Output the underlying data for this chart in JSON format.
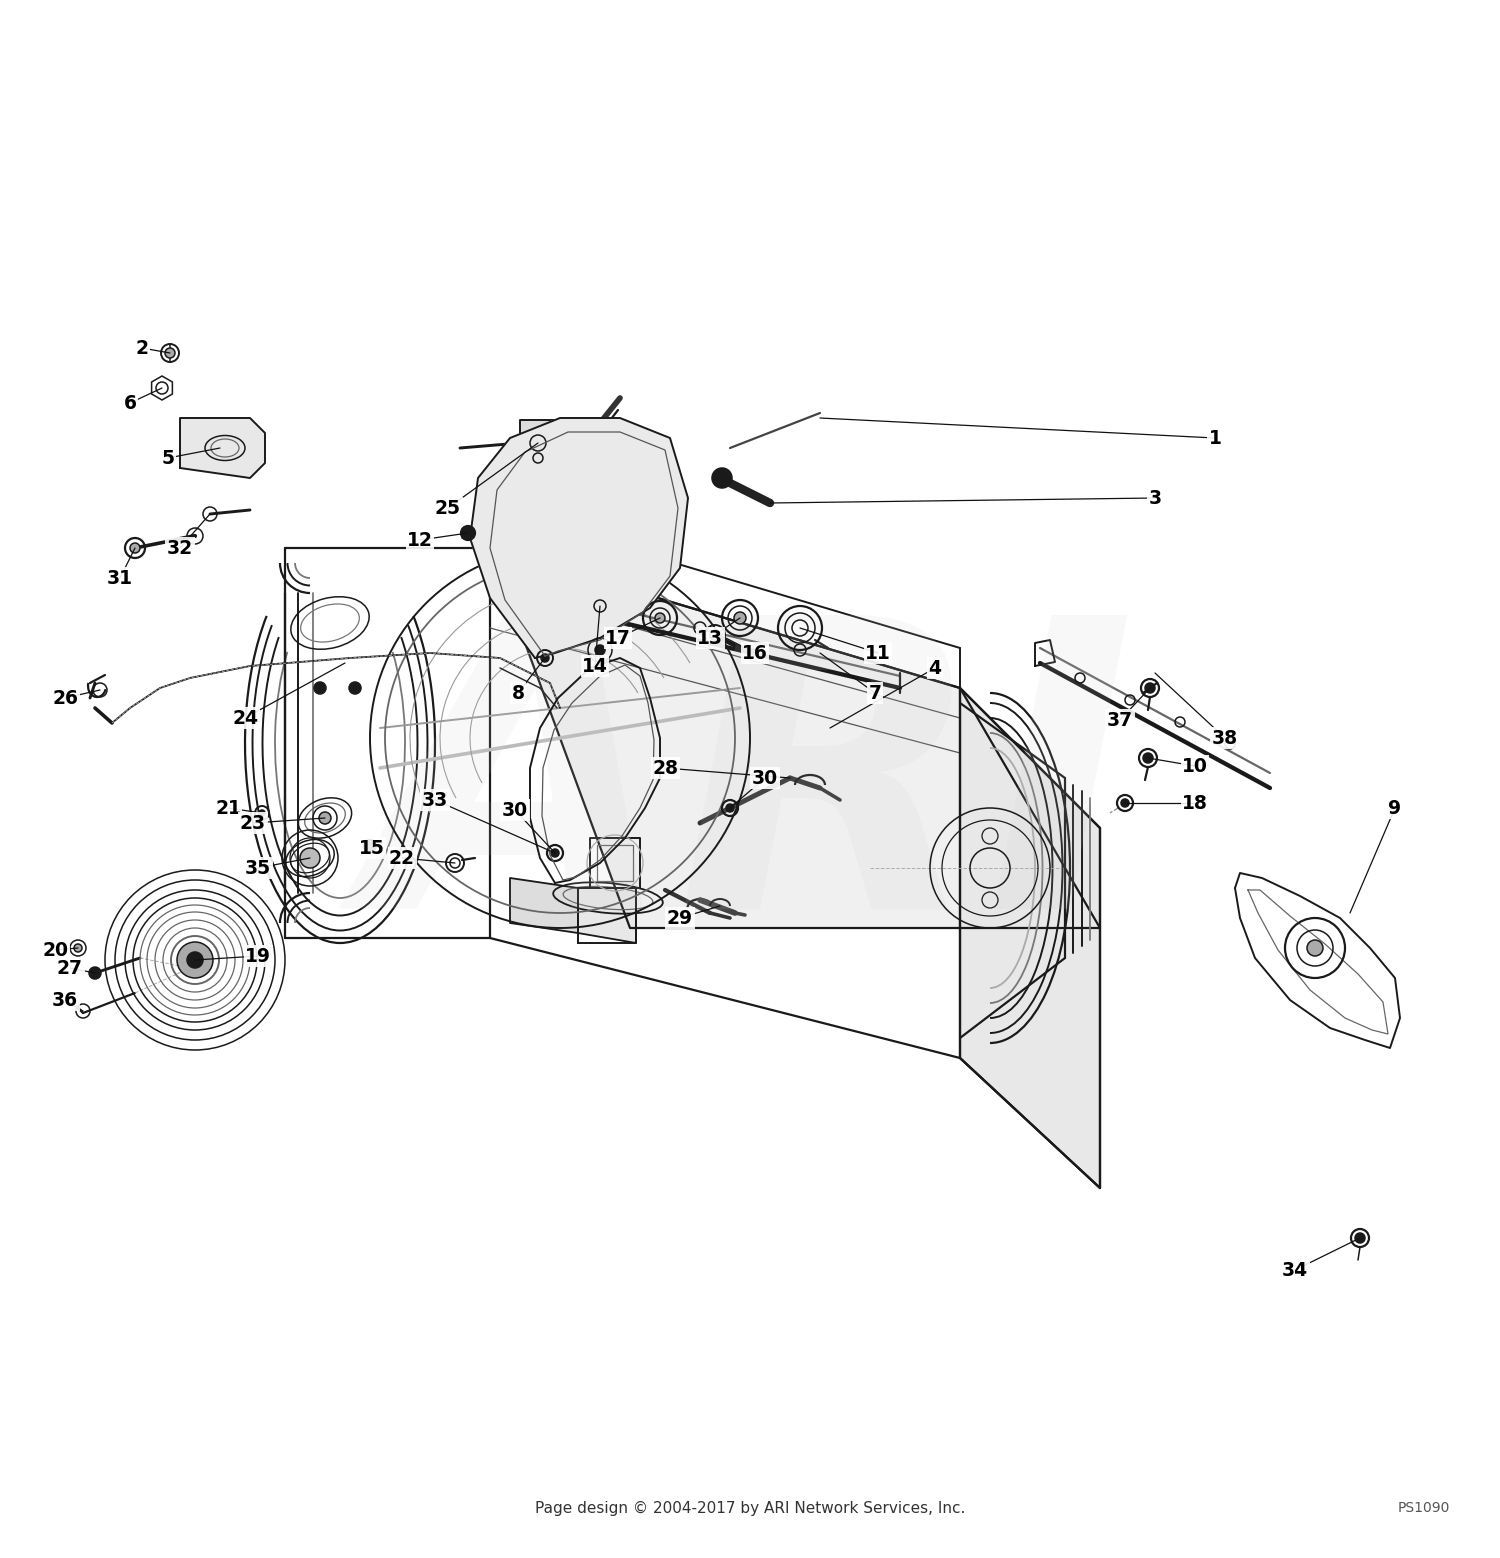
{
  "footer_left": "Page design © 2004-2017 by ARI Network Services, Inc.",
  "footer_right": "PS1090",
  "background_color": "#ffffff",
  "text_color": "#000000",
  "watermark_text": "ARI",
  "watermark_alpha": 0.12,
  "label_fontsize": 13.5,
  "label_color": "#000000",
  "line_color": "#111111",
  "part_color": "#1a1a1a",
  "leader_lw": 0.9,
  "draw_lw": 1.1
}
